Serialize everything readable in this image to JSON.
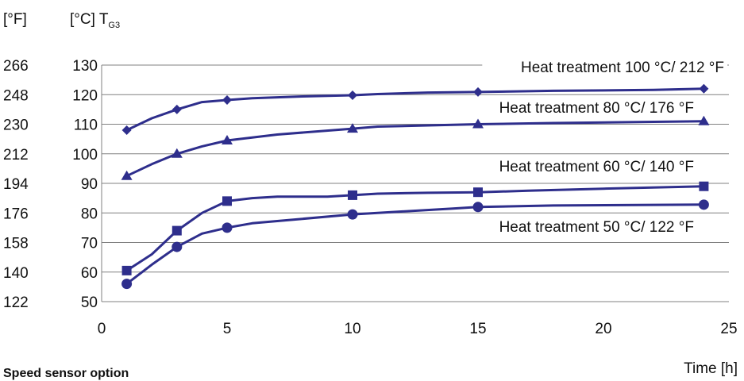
{
  "header": {
    "fahrenheit_unit": "[°F]",
    "celsius_unit": "[°C] T",
    "celsius_sub": "G3"
  },
  "x_unit_label": "Time [h]",
  "footer_text": "Speed sensor option",
  "chart_data": {
    "type": "line",
    "xlabel": "Time [h]",
    "ylabel": "[°C] T G3",
    "xlim": [
      0,
      25
    ],
    "ylim": [
      50,
      130
    ],
    "x_ticks": [
      0,
      5,
      10,
      15,
      20,
      25
    ],
    "y_ticks_celsius": [
      50,
      60,
      70,
      80,
      90,
      100,
      110,
      120,
      130
    ],
    "y_ticks_fahrenheit": [
      122,
      140,
      158,
      176,
      194,
      212,
      230,
      248,
      266
    ],
    "grid": true,
    "series": [
      {
        "name": "Heat treatment 100 °C/ 212 °F",
        "marker": "diamond",
        "color": "#2e2e8c",
        "points": [
          [
            1,
            108
          ],
          [
            2,
            112
          ],
          [
            3,
            115
          ],
          [
            4,
            117.5
          ],
          [
            5,
            118.2
          ],
          [
            6,
            118.8
          ],
          [
            7,
            119.1
          ],
          [
            8,
            119.4
          ],
          [
            10,
            119.8
          ],
          [
            11,
            120.2
          ],
          [
            13,
            120.7
          ],
          [
            15,
            120.9
          ],
          [
            18,
            121.3
          ],
          [
            22,
            121.6
          ],
          [
            24,
            122
          ]
        ],
        "marker_x": [
          1,
          3,
          5,
          10,
          15,
          24
        ]
      },
      {
        "name": "Heat treatment 80 °C/ 176 °F",
        "marker": "triangle",
        "color": "#2e2e8c",
        "points": [
          [
            1,
            92.5
          ],
          [
            2,
            96.5
          ],
          [
            3,
            100
          ],
          [
            4,
            102.5
          ],
          [
            5,
            104.5
          ],
          [
            7,
            106.5
          ],
          [
            10,
            108.5
          ],
          [
            11,
            109.2
          ],
          [
            13,
            109.6
          ],
          [
            15,
            110
          ],
          [
            18,
            110.4
          ],
          [
            22,
            110.8
          ],
          [
            24,
            111
          ]
        ],
        "marker_x": [
          1,
          3,
          5,
          10,
          15,
          24
        ]
      },
      {
        "name": "Heat treatment 60 °C/ 140 °F",
        "marker": "square",
        "color": "#2e2e8c",
        "points": [
          [
            1,
            60.5
          ],
          [
            2,
            66
          ],
          [
            3,
            74
          ],
          [
            4,
            80
          ],
          [
            5,
            84
          ],
          [
            6,
            85
          ],
          [
            7,
            85.5
          ],
          [
            9,
            85.5
          ],
          [
            10,
            86
          ],
          [
            11,
            86.5
          ],
          [
            13,
            86.8
          ],
          [
            15,
            87
          ],
          [
            17,
            87.5
          ],
          [
            20,
            88.2
          ],
          [
            24,
            89
          ]
        ],
        "marker_x": [
          1,
          3,
          5,
          10,
          15,
          24
        ]
      },
      {
        "name": "Heat treatment 50 °C/ 122 °F",
        "marker": "circle",
        "color": "#2e2e8c",
        "points": [
          [
            1,
            56
          ],
          [
            2,
            62.5
          ],
          [
            3,
            68.5
          ],
          [
            4,
            73
          ],
          [
            5,
            75
          ],
          [
            6,
            76.5
          ],
          [
            8,
            78
          ],
          [
            10,
            79.5
          ],
          [
            12,
            80.5
          ],
          [
            14,
            81.5
          ],
          [
            15,
            82
          ],
          [
            18,
            82.5
          ],
          [
            24,
            82.8
          ]
        ],
        "marker_x": [
          1,
          3,
          5,
          10,
          15,
          24
        ]
      }
    ]
  }
}
